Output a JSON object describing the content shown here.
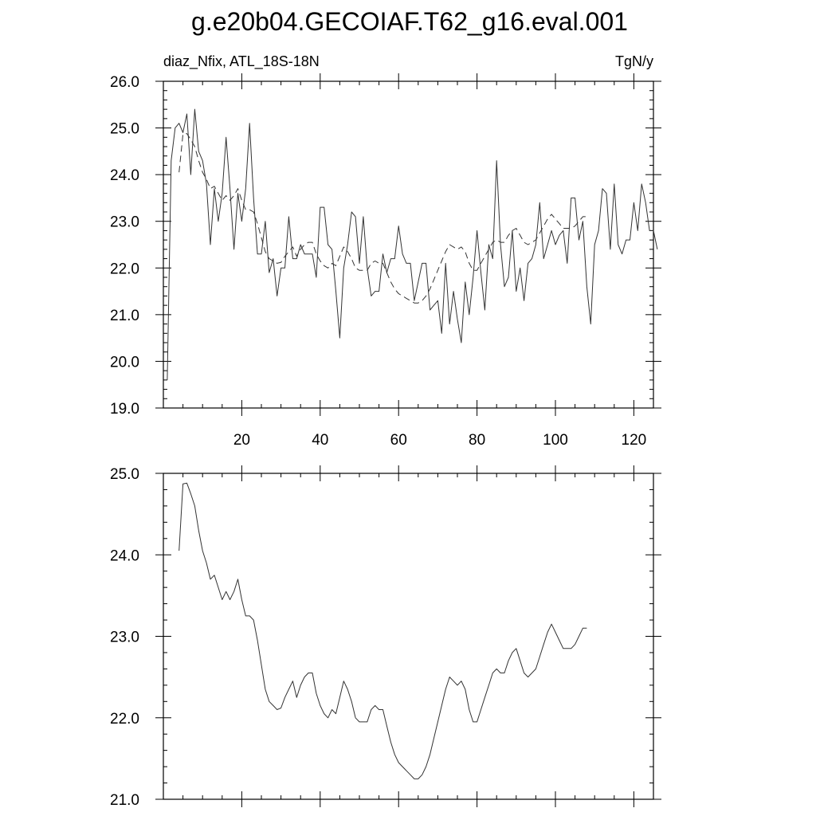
{
  "title": "g.e20b04.GECOIAF.T62_g16.eval.001",
  "chart_data": [
    {
      "type": "line",
      "left_label": "diaz_Nfix, ATL_18S-18N",
      "right_label": "TgN/y",
      "xlim": [
        0,
        125
      ],
      "ylim": [
        19.0,
        26.0
      ],
      "x_ticks": [
        20,
        40,
        60,
        80,
        100,
        120
      ],
      "y_ticks": [
        "19.0",
        "20.0",
        "21.0",
        "22.0",
        "23.0",
        "24.0",
        "25.0",
        "26.0"
      ],
      "series": [
        {
          "style": "solid",
          "x_start": 1,
          "values": [
            19.6,
            24.3,
            25.0,
            25.1,
            24.9,
            25.3,
            24.0,
            25.4,
            24.5,
            24.3,
            23.8,
            22.5,
            23.7,
            23.0,
            23.6,
            24.8,
            23.7,
            22.4,
            23.6,
            23.0,
            23.7,
            25.1,
            23.5,
            22.3,
            22.3,
            23.0,
            21.9,
            22.2,
            21.4,
            22.0,
            22.0,
            23.1,
            22.2,
            22.2,
            22.5,
            22.3,
            22.3,
            22.3,
            21.8,
            23.3,
            23.3,
            22.5,
            22.4,
            21.5,
            20.5,
            22.0,
            22.5,
            23.2,
            23.1,
            22.1,
            23.1,
            22.0,
            21.4,
            21.5,
            21.5,
            22.3,
            21.9,
            22.2,
            22.2,
            22.9,
            22.3,
            22.1,
            22.1,
            21.3,
            21.7,
            22.1,
            22.1,
            21.1,
            21.2,
            21.3,
            20.6,
            22.1,
            20.8,
            21.5,
            20.9,
            20.4,
            21.7,
            21.0,
            21.8,
            22.8,
            21.9,
            21.1,
            22.5,
            22.2,
            24.3,
            22.5,
            21.6,
            21.8,
            22.8,
            21.5,
            22.0,
            21.3,
            22.1,
            22.2,
            22.5,
            23.4,
            22.2,
            22.5,
            22.8,
            22.5,
            22.7,
            22.8,
            22.1,
            23.5,
            23.5,
            22.6,
            23.0,
            21.6,
            20.8,
            22.5,
            22.8,
            23.7,
            23.6,
            22.4,
            23.8,
            22.5,
            22.3,
            22.6,
            22.6,
            23.4,
            22.8,
            23.8,
            23.4,
            22.8,
            22.8,
            22.4
          ]
        },
        {
          "style": "dashed",
          "x_start": 4,
          "values": [
            24.05,
            24.87,
            24.88,
            24.75,
            24.6,
            24.3,
            24.05,
            23.9,
            23.7,
            23.75,
            23.6,
            23.45,
            23.55,
            23.45,
            23.55,
            23.7,
            23.45,
            23.25,
            23.25,
            23.2,
            22.95,
            22.65,
            22.35,
            22.2,
            22.15,
            22.1,
            22.12,
            22.25,
            22.35,
            22.45,
            22.25,
            22.4,
            22.5,
            22.55,
            22.55,
            22.3,
            22.15,
            22.05,
            22.0,
            22.1,
            22.05,
            22.25,
            22.45,
            22.35,
            22.2,
            22.0,
            21.95,
            21.95,
            21.95,
            22.1,
            22.15,
            22.1,
            22.1,
            21.9,
            21.7,
            21.55,
            21.45,
            21.4,
            21.35,
            21.3,
            21.25,
            21.25,
            21.3,
            21.4,
            21.55,
            21.75,
            21.95,
            22.15,
            22.35,
            22.5,
            22.45,
            22.4,
            22.45,
            22.35,
            22.1,
            21.95,
            21.95,
            22.1,
            22.25,
            22.4,
            22.55,
            22.6,
            22.55,
            22.55,
            22.7,
            22.8,
            22.85,
            22.7,
            22.55,
            22.5,
            22.55,
            22.6,
            22.75,
            22.9,
            23.05,
            23.15,
            23.05,
            22.95,
            22.85,
            22.85,
            22.85,
            22.9,
            23.0,
            23.1,
            23.1
          ]
        }
      ]
    },
    {
      "type": "line",
      "xlim": [
        0,
        125
      ],
      "ylim": [
        21.0,
        25.0
      ],
      "x_ticks": [
        20,
        40,
        60,
        80,
        100,
        120
      ],
      "y_ticks": [
        "21.0",
        "22.0",
        "23.0",
        "24.0",
        "25.0"
      ],
      "series": [
        {
          "style": "solid",
          "x_start": 4,
          "values": [
            24.05,
            24.87,
            24.88,
            24.75,
            24.6,
            24.3,
            24.05,
            23.9,
            23.7,
            23.75,
            23.6,
            23.45,
            23.55,
            23.45,
            23.55,
            23.7,
            23.45,
            23.25,
            23.25,
            23.2,
            22.95,
            22.65,
            22.35,
            22.2,
            22.15,
            22.1,
            22.12,
            22.25,
            22.35,
            22.45,
            22.25,
            22.4,
            22.5,
            22.55,
            22.55,
            22.3,
            22.15,
            22.05,
            22.0,
            22.1,
            22.05,
            22.25,
            22.45,
            22.35,
            22.2,
            22.0,
            21.95,
            21.95,
            21.95,
            22.1,
            22.15,
            22.1,
            22.1,
            21.9,
            21.7,
            21.55,
            21.45,
            21.4,
            21.35,
            21.3,
            21.25,
            21.25,
            21.3,
            21.4,
            21.55,
            21.75,
            21.95,
            22.15,
            22.35,
            22.5,
            22.45,
            22.4,
            22.45,
            22.35,
            22.1,
            21.95,
            21.95,
            22.1,
            22.25,
            22.4,
            22.55,
            22.6,
            22.55,
            22.55,
            22.7,
            22.8,
            22.85,
            22.7,
            22.55,
            22.5,
            22.55,
            22.6,
            22.75,
            22.9,
            23.05,
            23.15,
            23.05,
            22.95,
            22.85,
            22.85,
            22.85,
            22.9,
            23.0,
            23.1,
            23.1
          ]
        }
      ]
    }
  ]
}
